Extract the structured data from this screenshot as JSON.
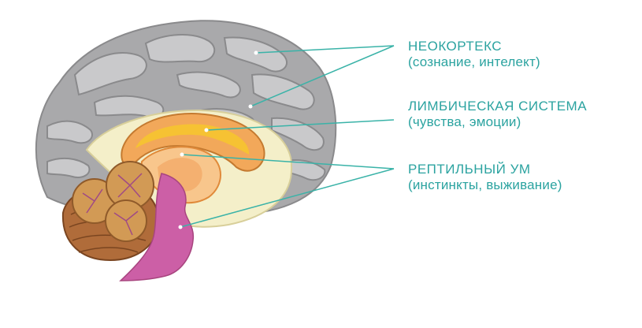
{
  "colors": {
    "label": "#2ba3a0",
    "leader_line": "#3ab3a8",
    "neocortex_gray": "#a9a9ab",
    "neocortex_gray_light": "#c9c9cb",
    "limbic_cream": "#f4efc9",
    "limbic_yellow": "#f6c233",
    "limbic_orange": "#f2a85a",
    "cerebellum_brown": "#b06c3a",
    "cerebellum_tan": "#d29a55",
    "brainstem_magenta": "#cc5fa6"
  },
  "labels": {
    "neocortex": {
      "title": "НЕОКОРТЕКС",
      "subtitle": "(сознание, интелект)"
    },
    "limbic": {
      "title": "ЛИМБИЧЕСКАЯ СИСТЕМА",
      "subtitle": "(чувства, эмоции)"
    },
    "reptilian": {
      "title": "РЕПТИЛЬНЫЙ УМ",
      "subtitle": "(инстинкты, выживание)"
    }
  }
}
